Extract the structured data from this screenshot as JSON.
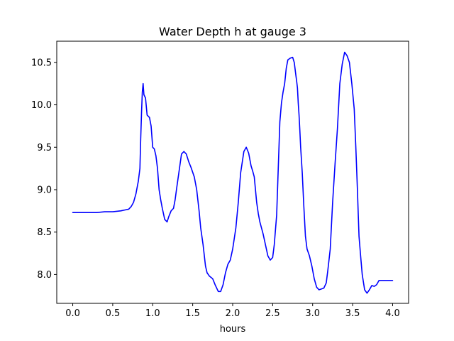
{
  "chart_data": {
    "type": "line",
    "title": "Water Depth h at gauge 3",
    "xlabel": "hours",
    "ylabel": "",
    "xlim": [
      -0.2,
      4.2
    ],
    "ylim": [
      7.66,
      10.75
    ],
    "xticks": [
      0.0,
      0.5,
      1.0,
      1.5,
      2.0,
      2.5,
      3.0,
      3.5,
      4.0
    ],
    "xtick_labels": [
      "0.0",
      "0.5",
      "1.0",
      "1.5",
      "2.0",
      "2.5",
      "3.0",
      "3.5",
      "4.0"
    ],
    "yticks": [
      8.0,
      8.5,
      9.0,
      9.5,
      10.0,
      10.5
    ],
    "ytick_labels": [
      "8.0",
      "8.5",
      "9.0",
      "9.5",
      "10.0",
      "10.5"
    ],
    "grid": false,
    "line_color": "#0000ff",
    "series": [
      {
        "x": [
          0.0,
          0.1,
          0.2,
          0.3,
          0.4,
          0.5,
          0.6,
          0.65,
          0.7,
          0.73,
          0.76,
          0.79,
          0.82,
          0.84,
          0.85,
          0.86,
          0.87,
          0.88,
          0.89,
          0.91,
          0.93,
          0.96,
          0.98,
          1.0,
          1.02,
          1.04,
          1.06,
          1.08,
          1.1,
          1.12,
          1.15,
          1.18,
          1.2,
          1.23,
          1.26,
          1.28,
          1.3,
          1.33,
          1.36,
          1.39,
          1.42,
          1.45,
          1.48,
          1.52,
          1.55,
          1.58,
          1.6,
          1.63,
          1.66,
          1.68,
          1.71,
          1.75,
          1.78,
          1.82,
          1.85,
          1.88,
          1.91,
          1.94,
          1.97,
          2.0,
          2.04,
          2.07,
          2.1,
          2.14,
          2.17,
          2.2,
          2.23,
          2.25,
          2.27,
          2.28,
          2.3,
          2.32,
          2.34,
          2.36,
          2.38,
          2.41,
          2.44,
          2.47,
          2.5,
          2.52,
          2.55,
          2.57,
          2.59,
          2.61,
          2.63,
          2.65,
          2.67,
          2.69,
          2.72,
          2.75,
          2.77,
          2.79,
          2.8,
          2.81,
          2.82,
          2.83,
          2.84,
          2.85,
          2.87,
          2.89,
          2.91,
          2.93,
          2.96,
          2.99,
          3.02,
          3.05,
          3.08,
          3.11,
          3.14,
          3.17,
          3.19,
          3.22,
          3.25,
          3.28,
          3.31,
          3.34,
          3.37,
          3.4,
          3.43,
          3.46,
          3.49,
          3.52,
          3.54,
          3.56,
          3.57,
          3.58,
          3.6,
          3.62,
          3.65,
          3.68,
          3.71,
          3.74,
          3.77,
          3.8,
          3.83,
          3.86,
          3.88,
          3.9,
          3.92,
          3.94,
          3.96,
          3.98,
          4.0
        ],
        "y": [
          8.73,
          8.73,
          8.73,
          8.73,
          8.74,
          8.74,
          8.75,
          8.76,
          8.77,
          8.8,
          8.85,
          8.95,
          9.1,
          9.25,
          9.6,
          9.9,
          10.15,
          10.25,
          10.12,
          10.08,
          9.88,
          9.85,
          9.75,
          9.5,
          9.48,
          9.4,
          9.25,
          9.0,
          8.88,
          8.78,
          8.65,
          8.62,
          8.68,
          8.75,
          8.78,
          8.88,
          9.02,
          9.22,
          9.42,
          9.45,
          9.42,
          9.33,
          9.26,
          9.15,
          9.0,
          8.75,
          8.55,
          8.35,
          8.1,
          8.02,
          7.98,
          7.95,
          7.88,
          7.8,
          7.8,
          7.88,
          8.02,
          8.12,
          8.17,
          8.3,
          8.55,
          8.85,
          9.2,
          9.45,
          9.5,
          9.43,
          9.28,
          9.22,
          9.15,
          9.05,
          8.85,
          8.72,
          8.62,
          8.55,
          8.48,
          8.35,
          8.22,
          8.17,
          8.2,
          8.35,
          8.7,
          9.25,
          9.8,
          10.02,
          10.15,
          10.25,
          10.43,
          10.53,
          10.55,
          10.56,
          10.5,
          10.35,
          10.28,
          10.2,
          10.02,
          9.88,
          9.7,
          9.5,
          9.2,
          8.8,
          8.45,
          8.3,
          8.22,
          8.1,
          7.95,
          7.85,
          7.82,
          7.83,
          7.84,
          7.9,
          8.05,
          8.3,
          8.85,
          9.3,
          9.72,
          10.25,
          10.48,
          10.62,
          10.58,
          10.5,
          10.25,
          9.95,
          9.5,
          9.0,
          8.72,
          8.45,
          8.22,
          8.0,
          7.82,
          7.78,
          7.82,
          7.87,
          7.86,
          7.88,
          7.93,
          7.93,
          7.93,
          7.93,
          7.93,
          7.93,
          7.93,
          7.93,
          7.93
        ]
      }
    ]
  }
}
